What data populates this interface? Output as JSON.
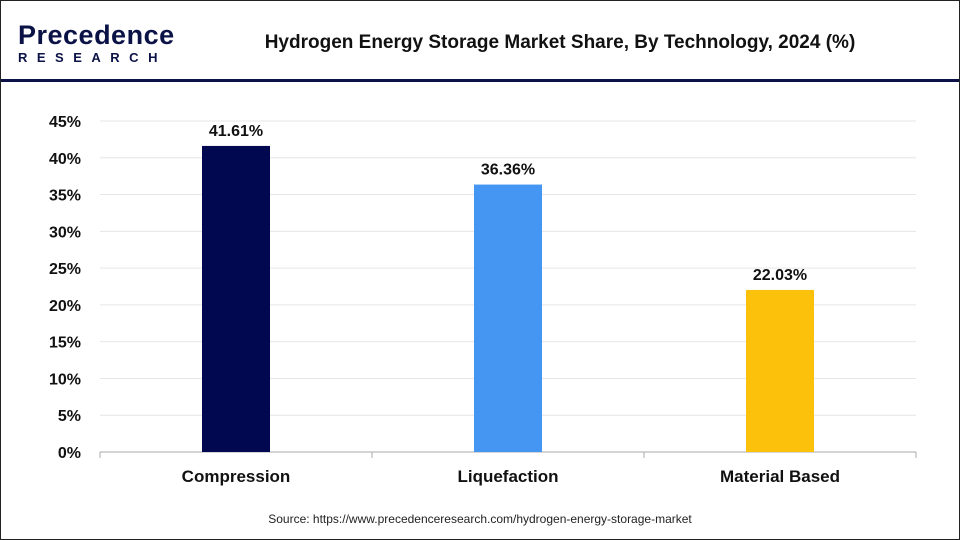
{
  "logo": {
    "line1": "Precedence",
    "line2": "RESEARCH"
  },
  "title": "Hydrogen Energy Storage Market Share, By Technology, 2024 (%)",
  "source": "Source: https://www.precedenceresearch.com/hydrogen-energy-storage-market",
  "chart_data": {
    "type": "bar",
    "title": "Hydrogen Energy Storage Market Share, By Technology, 2024 (%)",
    "categories": [
      "Compression",
      "Liquefaction",
      "Material Based"
    ],
    "values": [
      41.61,
      36.36,
      22.03
    ],
    "data_labels": [
      "41.61%",
      "36.36%",
      "22.03%"
    ],
    "colors": [
      "#02084f",
      "#4596f2",
      "#fcc10a"
    ],
    "ylim": [
      0,
      45
    ],
    "yticks": [
      "0%",
      "5%",
      "10%",
      "15%",
      "20%",
      "25%",
      "30%",
      "35%",
      "40%",
      "45%"
    ],
    "grid": true,
    "xlabel": "",
    "ylabel": ""
  }
}
